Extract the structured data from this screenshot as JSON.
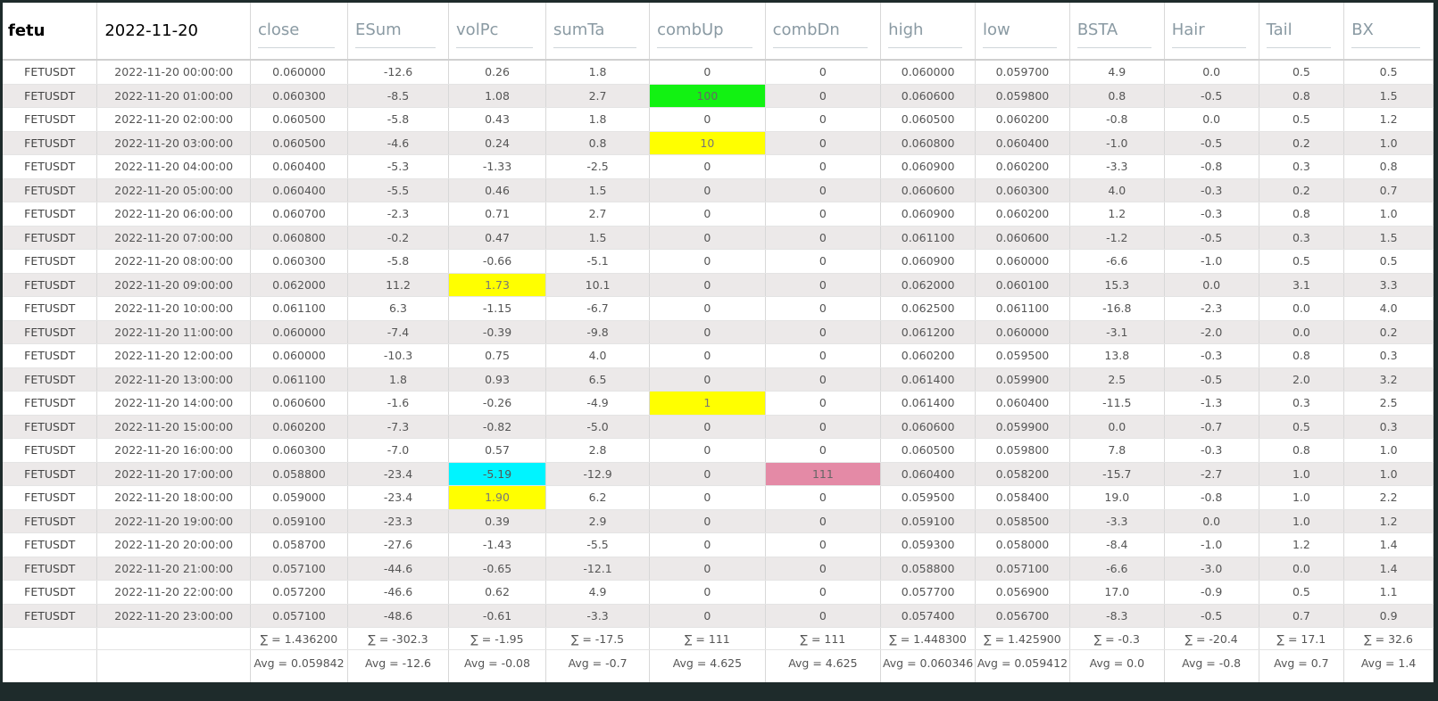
{
  "columns": [
    "fetu",
    "2022-11-20",
    "close",
    "ESum",
    "volPc",
    "sumTa",
    "combUp",
    "combDn",
    "high",
    "low",
    "BSTA",
    "Hair",
    "Tail",
    "BX"
  ],
  "rows": [
    [
      "FETUSDT",
      "2022-11-20 00:00:00",
      "0.060000",
      "-12.6",
      "0.26",
      "1.8",
      "0",
      "0",
      "0.060000",
      "0.059700",
      "4.9",
      "0.0",
      "0.5",
      "0.5"
    ],
    [
      "FETUSDT",
      "2022-11-20 01:00:00",
      "0.060300",
      "-8.5",
      "1.08",
      "2.7",
      "100",
      "0",
      "0.060600",
      "0.059800",
      "0.8",
      "-0.5",
      "0.8",
      "1.5"
    ],
    [
      "FETUSDT",
      "2022-11-20 02:00:00",
      "0.060500",
      "-5.8",
      "0.43",
      "1.8",
      "0",
      "0",
      "0.060500",
      "0.060200",
      "-0.8",
      "0.0",
      "0.5",
      "1.2"
    ],
    [
      "FETUSDT",
      "2022-11-20 03:00:00",
      "0.060500",
      "-4.6",
      "0.24",
      "0.8",
      "10",
      "0",
      "0.060800",
      "0.060400",
      "-1.0",
      "-0.5",
      "0.2",
      "1.0"
    ],
    [
      "FETUSDT",
      "2022-11-20 04:00:00",
      "0.060400",
      "-5.3",
      "-1.33",
      "-2.5",
      "0",
      "0",
      "0.060900",
      "0.060200",
      "-3.3",
      "-0.8",
      "0.3",
      "0.8"
    ],
    [
      "FETUSDT",
      "2022-11-20 05:00:00",
      "0.060400",
      "-5.5",
      "0.46",
      "1.5",
      "0",
      "0",
      "0.060600",
      "0.060300",
      "4.0",
      "-0.3",
      "0.2",
      "0.7"
    ],
    [
      "FETUSDT",
      "2022-11-20 06:00:00",
      "0.060700",
      "-2.3",
      "0.71",
      "2.7",
      "0",
      "0",
      "0.060900",
      "0.060200",
      "1.2",
      "-0.3",
      "0.8",
      "1.0"
    ],
    [
      "FETUSDT",
      "2022-11-20 07:00:00",
      "0.060800",
      "-0.2",
      "0.47",
      "1.5",
      "0",
      "0",
      "0.061100",
      "0.060600",
      "-1.2",
      "-0.5",
      "0.3",
      "1.5"
    ],
    [
      "FETUSDT",
      "2022-11-20 08:00:00",
      "0.060300",
      "-5.8",
      "-0.66",
      "-5.1",
      "0",
      "0",
      "0.060900",
      "0.060000",
      "-6.6",
      "-1.0",
      "0.5",
      "0.5"
    ],
    [
      "FETUSDT",
      "2022-11-20 09:00:00",
      "0.062000",
      "11.2",
      "1.73",
      "10.1",
      "0",
      "0",
      "0.062000",
      "0.060100",
      "15.3",
      "0.0",
      "3.1",
      "3.3"
    ],
    [
      "FETUSDT",
      "2022-11-20 10:00:00",
      "0.061100",
      "6.3",
      "-1.15",
      "-6.7",
      "0",
      "0",
      "0.062500",
      "0.061100",
      "-16.8",
      "-2.3",
      "0.0",
      "4.0"
    ],
    [
      "FETUSDT",
      "2022-11-20 11:00:00",
      "0.060000",
      "-7.4",
      "-0.39",
      "-9.8",
      "0",
      "0",
      "0.061200",
      "0.060000",
      "-3.1",
      "-2.0",
      "0.0",
      "0.2"
    ],
    [
      "FETUSDT",
      "2022-11-20 12:00:00",
      "0.060000",
      "-10.3",
      "0.75",
      "4.0",
      "0",
      "0",
      "0.060200",
      "0.059500",
      "13.8",
      "-0.3",
      "0.8",
      "0.3"
    ],
    [
      "FETUSDT",
      "2022-11-20 13:00:00",
      "0.061100",
      "1.8",
      "0.93",
      "6.5",
      "0",
      "0",
      "0.061400",
      "0.059900",
      "2.5",
      "-0.5",
      "2.0",
      "3.2"
    ],
    [
      "FETUSDT",
      "2022-11-20 14:00:00",
      "0.060600",
      "-1.6",
      "-0.26",
      "-4.9",
      "1",
      "0",
      "0.061400",
      "0.060400",
      "-11.5",
      "-1.3",
      "0.3",
      "2.5"
    ],
    [
      "FETUSDT",
      "2022-11-20 15:00:00",
      "0.060200",
      "-7.3",
      "-0.82",
      "-5.0",
      "0",
      "0",
      "0.060600",
      "0.059900",
      "0.0",
      "-0.7",
      "0.5",
      "0.3"
    ],
    [
      "FETUSDT",
      "2022-11-20 16:00:00",
      "0.060300",
      "-7.0",
      "0.57",
      "2.8",
      "0",
      "0",
      "0.060500",
      "0.059800",
      "7.8",
      "-0.3",
      "0.8",
      "1.0"
    ],
    [
      "FETUSDT",
      "2022-11-20 17:00:00",
      "0.058800",
      "-23.4",
      "-5.19",
      "-12.9",
      "0",
      "111",
      "0.060400",
      "0.058200",
      "-15.7",
      "-2.7",
      "1.0",
      "1.0"
    ],
    [
      "FETUSDT",
      "2022-11-20 18:00:00",
      "0.059000",
      "-23.4",
      "1.90",
      "6.2",
      "0",
      "0",
      "0.059500",
      "0.058400",
      "19.0",
      "-0.8",
      "1.0",
      "2.2"
    ],
    [
      "FETUSDT",
      "2022-11-20 19:00:00",
      "0.059100",
      "-23.3",
      "0.39",
      "2.9",
      "0",
      "0",
      "0.059100",
      "0.058500",
      "-3.3",
      "0.0",
      "1.0",
      "1.2"
    ],
    [
      "FETUSDT",
      "2022-11-20 20:00:00",
      "0.058700",
      "-27.6",
      "-1.43",
      "-5.5",
      "0",
      "0",
      "0.059300",
      "0.058000",
      "-8.4",
      "-1.0",
      "1.2",
      "1.4"
    ],
    [
      "FETUSDT",
      "2022-11-20 21:00:00",
      "0.057100",
      "-44.6",
      "-0.65",
      "-12.1",
      "0",
      "0",
      "0.058800",
      "0.057100",
      "-6.6",
      "-3.0",
      "0.0",
      "1.4"
    ],
    [
      "FETUSDT",
      "2022-11-20 22:00:00",
      "0.057200",
      "-46.6",
      "0.62",
      "4.9",
      "0",
      "0",
      "0.057700",
      "0.056900",
      "17.0",
      "-0.9",
      "0.5",
      "1.1"
    ],
    [
      "FETUSDT",
      "2022-11-20 23:00:00",
      "0.057100",
      "-48.6",
      "-0.61",
      "-3.3",
      "0",
      "0",
      "0.057400",
      "0.056700",
      "-8.3",
      "-0.5",
      "0.7",
      "0.9"
    ]
  ],
  "highlights": [
    {
      "row": 1,
      "col": 6,
      "color": "green"
    },
    {
      "row": 3,
      "col": 6,
      "color": "yellow"
    },
    {
      "row": 9,
      "col": 4,
      "color": "yellow"
    },
    {
      "row": 14,
      "col": 6,
      "color": "yellow"
    },
    {
      "row": 17,
      "col": 4,
      "color": "cyan"
    },
    {
      "row": 17,
      "col": 7,
      "color": "pink"
    },
    {
      "row": 18,
      "col": 4,
      "color": "yellow"
    }
  ],
  "highlight_colors": {
    "green": "#12f212",
    "yellow": "#ffff00",
    "cyan": "#00f4ff",
    "pink": "#e48aa6"
  },
  "sums": [
    "",
    "",
    "∑ = 1.436200",
    "∑ = -302.3",
    "∑ = -1.95",
    "∑ = -17.5",
    "∑ = 111",
    "∑ = 111",
    "∑ = 1.448300",
    "∑ = 1.425900",
    "∑ = -0.3",
    "∑ = -20.4",
    "∑ = 17.1",
    "∑ = 32.6"
  ],
  "avgs": [
    "",
    "",
    "Avg = 0.059842",
    "Avg = -12.6",
    "Avg = -0.08",
    "Avg = -0.7",
    "Avg = 4.625",
    "Avg = 4.625",
    "Avg = 0.060346",
    "Avg = 0.059412",
    "Avg = 0.0",
    "Avg = -0.8",
    "Avg = 0.7",
    "Avg = 1.4"
  ]
}
